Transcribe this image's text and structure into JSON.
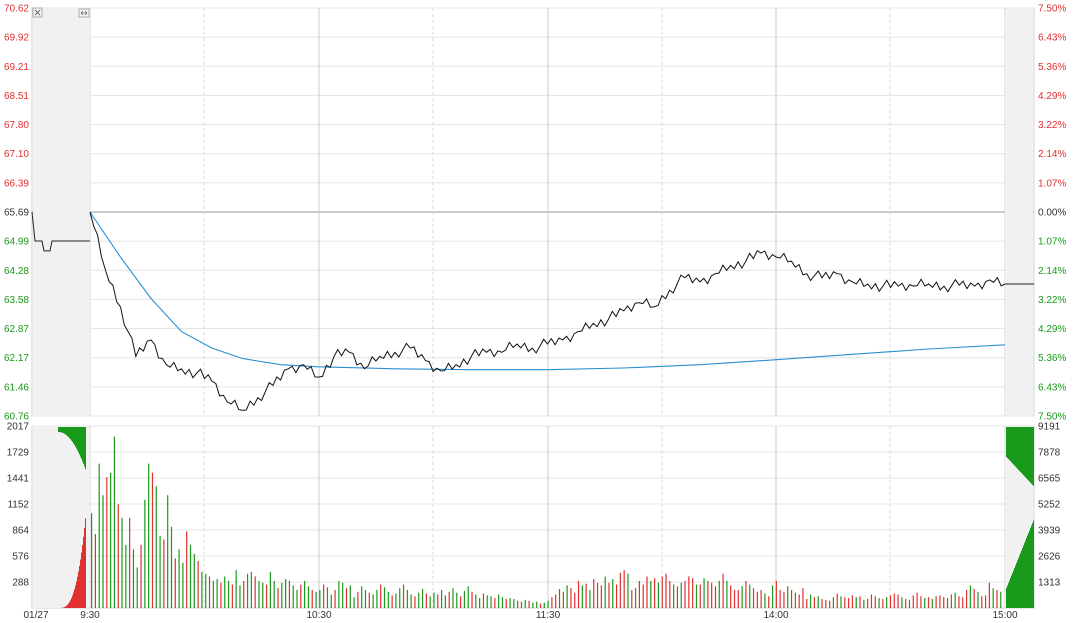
{
  "chart_data": {
    "type": "line",
    "reference_price": 65.69,
    "price_axis": {
      "labels": [
        "70.62",
        "69.92",
        "69.21",
        "68.51",
        "67.80",
        "67.10",
        "66.39",
        "65.69",
        "64.99",
        "64.28",
        "63.58",
        "62.87",
        "62.17",
        "61.46",
        "60.76"
      ],
      "range": [
        60.76,
        70.62
      ]
    },
    "percent_axis": {
      "labels": [
        "7.50%",
        "6.43%",
        "5.36%",
        "4.29%",
        "3.22%",
        "2.14%",
        "1.07%",
        "0.00%",
        "1.07%",
        "2.14%",
        "3.22%",
        "4.29%",
        "5.36%",
        "6.43%",
        "7.50%"
      ]
    },
    "volume_axis_left": {
      "labels": [
        "2017",
        "1729",
        "1441",
        "1152",
        "864",
        "576",
        "288"
      ],
      "max": 2017
    },
    "volume_axis_right": {
      "labels": [
        "9191",
        "7878",
        "6565",
        "5252",
        "3939",
        "2626",
        "1313"
      ],
      "max": 9191
    },
    "time_labels": [
      "01/27",
      "9:30",
      "10:30",
      "11:30",
      "14:00",
      "15:00"
    ],
    "price_series": [
      [
        0,
        65.69
      ],
      [
        4,
        64.3
      ],
      [
        8,
        63.4
      ],
      [
        12,
        62.2
      ],
      [
        16,
        62.6
      ],
      [
        20,
        62.0
      ],
      [
        24,
        61.9
      ],
      [
        28,
        61.8
      ],
      [
        32,
        61.6
      ],
      [
        36,
        61.1
      ],
      [
        40,
        60.9
      ],
      [
        44,
        61.2
      ],
      [
        48,
        61.5
      ],
      [
        52,
        61.9
      ],
      [
        56,
        62.0
      ],
      [
        60,
        61.7
      ],
      [
        64,
        62.2
      ],
      [
        68,
        62.3
      ],
      [
        72,
        61.9
      ],
      [
        76,
        62.2
      ],
      [
        80,
        62.3
      ],
      [
        84,
        62.4
      ],
      [
        88,
        62.1
      ],
      [
        92,
        61.85
      ],
      [
        96,
        62.0
      ],
      [
        100,
        62.2
      ],
      [
        104,
        62.3
      ],
      [
        108,
        62.3
      ],
      [
        112,
        62.5
      ],
      [
        116,
        62.4
      ],
      [
        120,
        62.5
      ],
      [
        124,
        62.6
      ],
      [
        128,
        62.8
      ],
      [
        132,
        63.0
      ],
      [
        136,
        63.1
      ],
      [
        140,
        63.3
      ],
      [
        144,
        63.5
      ],
      [
        148,
        63.4
      ],
      [
        152,
        63.8
      ],
      [
        156,
        64.1
      ],
      [
        160,
        64.0
      ],
      [
        164,
        64.2
      ],
      [
        168,
        64.4
      ],
      [
        172,
        64.5
      ],
      [
        176,
        64.7
      ],
      [
        180,
        64.6
      ],
      [
        184,
        64.5
      ],
      [
        188,
        64.2
      ],
      [
        192,
        64.1
      ],
      [
        196,
        64.2
      ],
      [
        200,
        64.0
      ],
      [
        204,
        63.95
      ],
      [
        208,
        63.9
      ],
      [
        212,
        63.9
      ],
      [
        216,
        63.9
      ],
      [
        220,
        63.95
      ],
      [
        224,
        63.9
      ],
      [
        228,
        63.92
      ],
      [
        232,
        63.9
      ],
      [
        236,
        64.05
      ],
      [
        240,
        63.95
      ]
    ],
    "avg_series": [
      [
        0,
        65.69
      ],
      [
        8,
        64.6
      ],
      [
        16,
        63.6
      ],
      [
        24,
        62.8
      ],
      [
        32,
        62.4
      ],
      [
        40,
        62.15
      ],
      [
        50,
        62.0
      ],
      [
        60,
        61.95
      ],
      [
        80,
        61.9
      ],
      [
        100,
        61.88
      ],
      [
        120,
        61.88
      ],
      [
        140,
        61.92
      ],
      [
        160,
        62.0
      ],
      [
        180,
        62.12
      ],
      [
        200,
        62.25
      ],
      [
        220,
        62.38
      ],
      [
        240,
        62.48
      ]
    ],
    "volume_series": [
      1050,
      820,
      1600,
      1250,
      1450,
      1500,
      1900,
      1150,
      1000,
      700,
      1000,
      650,
      450,
      700,
      1200,
      1600,
      1500,
      1350,
      800,
      760,
      1250,
      900,
      550,
      650,
      500,
      850,
      700,
      600,
      520,
      400,
      380,
      350,
      300,
      320,
      280,
      350,
      300,
      260,
      420,
      250,
      300,
      380,
      400,
      350,
      300,
      280,
      260,
      400,
      300,
      220,
      280,
      320,
      300,
      250,
      200,
      260,
      300,
      240,
      200,
      180,
      200,
      260,
      230,
      150,
      200,
      300,
      280,
      220,
      250,
      120,
      180,
      240,
      200,
      170,
      150,
      200,
      260,
      230,
      180,
      140,
      160,
      220,
      260,
      200,
      150,
      130,
      170,
      210,
      160,
      130,
      170,
      150,
      200,
      140,
      180,
      220,
      170,
      130,
      190,
      240,
      180,
      150,
      110,
      160,
      140,
      130,
      110,
      150,
      120,
      100,
      110,
      100,
      80,
      70,
      90,
      80,
      60,
      70,
      50,
      60,
      80,
      120,
      150,
      210,
      180,
      250,
      220,
      170,
      300,
      250,
      270,
      200,
      320,
      280,
      250,
      350,
      280,
      320,
      260,
      390,
      420,
      380,
      200,
      220,
      300,
      260,
      350,
      300,
      330,
      280,
      350,
      380,
      300,
      260,
      240,
      280,
      300,
      350,
      330,
      260,
      260,
      330,
      300,
      280,
      240,
      300,
      380,
      300,
      250,
      200,
      200,
      240,
      300,
      260,
      220,
      180,
      200,
      160,
      130,
      250,
      300,
      200,
      180,
      240,
      200,
      170,
      150,
      220,
      100,
      150,
      120,
      130,
      100,
      90,
      80,
      120,
      160,
      130,
      120,
      110,
      140,
      120,
      130,
      90,
      100,
      150,
      130,
      110,
      100,
      120,
      140,
      160,
      150,
      120,
      100,
      90,
      140,
      170,
      130,
      110,
      120,
      100,
      130,
      140,
      120,
      110,
      150,
      170,
      130,
      120,
      200,
      250,
      210,
      180,
      130,
      140,
      280,
      220,
      200,
      180
    ],
    "volume_colors_up_every": 3
  }
}
